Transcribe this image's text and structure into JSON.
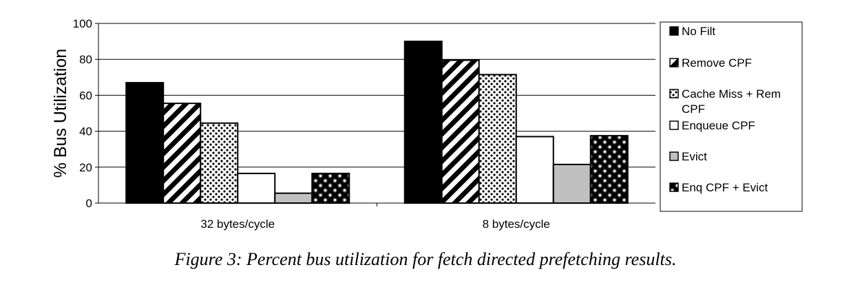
{
  "chart_data": {
    "type": "bar",
    "categories": [
      "32 bytes/cycle",
      "8 bytes/cycle"
    ],
    "series": [
      {
        "name": "No Filt",
        "values": [
          67,
          90
        ],
        "pattern": "solid-black"
      },
      {
        "name": "Remove CPF",
        "values": [
          55.5,
          79.5
        ],
        "pattern": "diagonal-stripes"
      },
      {
        "name": "Cache Miss + Rem CPF",
        "values": [
          44.5,
          71.5
        ],
        "pattern": "dots"
      },
      {
        "name": "Enqueue CPF",
        "values": [
          16.5,
          37
        ],
        "pattern": "white"
      },
      {
        "name": "Evict",
        "values": [
          5.5,
          21.5
        ],
        "pattern": "gray"
      },
      {
        "name": "Enq CPF + Evict",
        "values": [
          16.5,
          37.5
        ],
        "pattern": "checker-circles"
      }
    ],
    "title": "",
    "xlabel": "",
    "ylabel": "% Bus Utilization",
    "ylim": [
      0,
      100
    ],
    "yticks": [
      "0",
      "20",
      "40",
      "60",
      "80",
      "100"
    ],
    "grid": true,
    "legend_position": "right",
    "legend_lines": [
      [
        "No Filt"
      ],
      [
        "Remove CPF"
      ],
      [
        "Cache Miss + Rem",
        "CPF"
      ],
      [
        "Enqueue CPF"
      ],
      [
        "Evict"
      ],
      [
        "Enq CPF + Evict"
      ]
    ]
  },
  "caption": "Figure 3: Percent bus utilization for fetch directed prefetching results."
}
